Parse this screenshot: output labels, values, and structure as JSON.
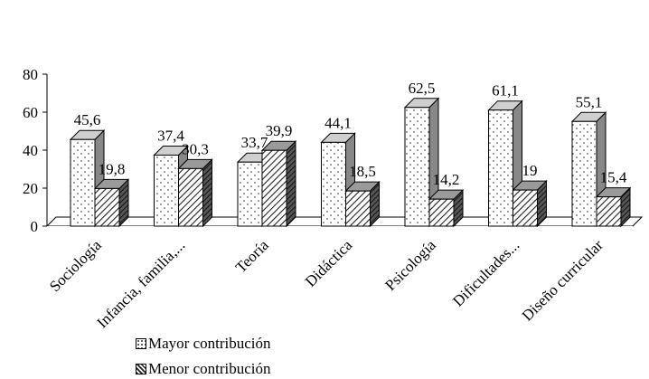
{
  "chart_data": {
    "type": "bar",
    "categories": [
      "Sociología",
      "Infancia, familia,...",
      "Teoría",
      "Didáctica",
      "Psicología",
      "Dificultades...",
      "Diseño curricular"
    ],
    "series": [
      {
        "name": "Mayor contribución",
        "values": [
          45.6,
          37.4,
          33.7,
          44.1,
          62.5,
          61.1,
          55.1
        ],
        "labels": [
          "45,6",
          "37,4",
          "33,7",
          "44,1",
          "62,5",
          "61,1",
          "55,1"
        ]
      },
      {
        "name": "Menor contribución",
        "values": [
          19.8,
          30.3,
          39.9,
          18.5,
          14.2,
          19,
          15.4
        ],
        "labels": [
          "19,8",
          "30,3",
          "39,9",
          "18,5",
          "14,2",
          "19",
          "15,4"
        ]
      }
    ],
    "yticks": [
      "0",
      "20",
      "40",
      "60",
      "80"
    ],
    "ylim": [
      0,
      80
    ],
    "legend_position": "bottom-left",
    "grid": false,
    "three_d": true
  }
}
